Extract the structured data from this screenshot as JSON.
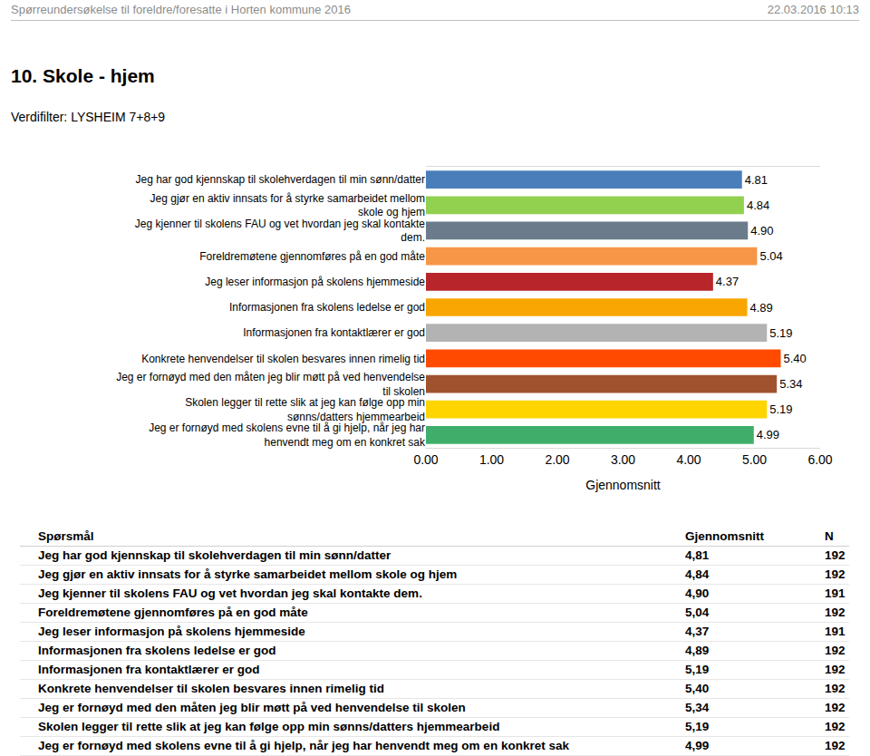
{
  "header": {
    "title": "Spørreundersøkelse til foreldre/foresatte i Horten kommune 2016",
    "timestamp": "22.03.2016 10:13"
  },
  "section_title": "10. Skole - hjem",
  "filter": "Verdifilter: LYSHEIM 7+8+9",
  "chart_data": {
    "type": "bar",
    "orientation": "horizontal",
    "categories": [
      "Jeg har god kjennskap til skolehverdagen til min sønn/datter",
      "Jeg gjør en aktiv innsats for å styrke samarbeidet mellom skole og hjem",
      "Jeg kjenner til skolens FAU og vet hvordan jeg skal kontakte dem.",
      "Foreldremøtene gjennomføres på en god måte",
      "Jeg leser informasjon på skolens hjemmeside",
      "Informasjonen fra skolens ledelse er god",
      "Informasjonen fra kontaktlærer er god",
      "Konkrete henvendelser til skolen besvares innen rimelig tid",
      "Jeg er fornøyd med den måten jeg blir møtt på ved henvendelse til skolen",
      "Skolen legger til rette slik at jeg kan følge opp min sønns/datters hjemmearbeid",
      "Jeg er fornøyd med skolens evne til å gi hjelp, når jeg har henvendt meg om en konkret sak"
    ],
    "values": [
      4.81,
      4.84,
      4.9,
      5.04,
      4.37,
      4.89,
      5.19,
      5.4,
      5.34,
      5.19,
      4.99
    ],
    "value_labels": [
      "4.81",
      "4.84",
      "4.90",
      "5.04",
      "4.37",
      "4.89",
      "5.19",
      "5.40",
      "5.34",
      "5.19",
      "4.99"
    ],
    "colors": [
      "#4a7ebb",
      "#92d050",
      "#6b7b8c",
      "#f79646",
      "#b8252b",
      "#f9a602",
      "#b3b3b3",
      "#ff4a00",
      "#a0522d",
      "#ffd500",
      "#3fae6a"
    ],
    "data_labels": true,
    "xlim": [
      0,
      6
    ],
    "xticks": [
      {
        "value": 0,
        "label": "0.00"
      },
      {
        "value": 1,
        "label": "1.00"
      },
      {
        "value": 2,
        "label": "2.00"
      },
      {
        "value": 3,
        "label": "3.00"
      },
      {
        "value": 4,
        "label": "4.00"
      },
      {
        "value": 5,
        "label": "5.00"
      },
      {
        "value": 6,
        "label": "6.00"
      }
    ],
    "xlabel": "Gjennomsnitt",
    "grid": false
  },
  "table": {
    "header": [
      "Spørsmål",
      "Gjennomsnitt",
      "N"
    ],
    "rows": [
      [
        "Jeg har god kjennskap til skolehverdagen til min sønn/datter",
        "4,81",
        192
      ],
      [
        "Jeg gjør en aktiv innsats for å styrke samarbeidet mellom skole og hjem",
        "4,84",
        192
      ],
      [
        "Jeg kjenner til skolens FAU og vet hvordan jeg skal kontakte dem.",
        "4,90",
        191
      ],
      [
        "Foreldremøtene gjennomføres på en god måte",
        "5,04",
        192
      ],
      [
        "Jeg leser informasjon på skolens hjemmeside",
        "4,37",
        191
      ],
      [
        "Informasjonen fra skolens ledelse er god",
        "4,89",
        192
      ],
      [
        "Informasjonen fra kontaktlærer er god",
        "5,19",
        192
      ],
      [
        "Konkrete henvendelser til skolen besvares innen rimelig tid",
        "5,40",
        192
      ],
      [
        "Jeg er fornøyd med den måten jeg blir møtt på ved henvendelse til skolen",
        "5,34",
        192
      ],
      [
        "Skolen legger til rette slik at jeg kan følge opp min sønns/datters hjemmearbeid",
        "5,19",
        192
      ],
      [
        "Jeg er fornøyd med skolens evne til å gi hjelp, når jeg har henvendt meg om en konkret sak",
        "4,99",
        192
      ]
    ]
  }
}
